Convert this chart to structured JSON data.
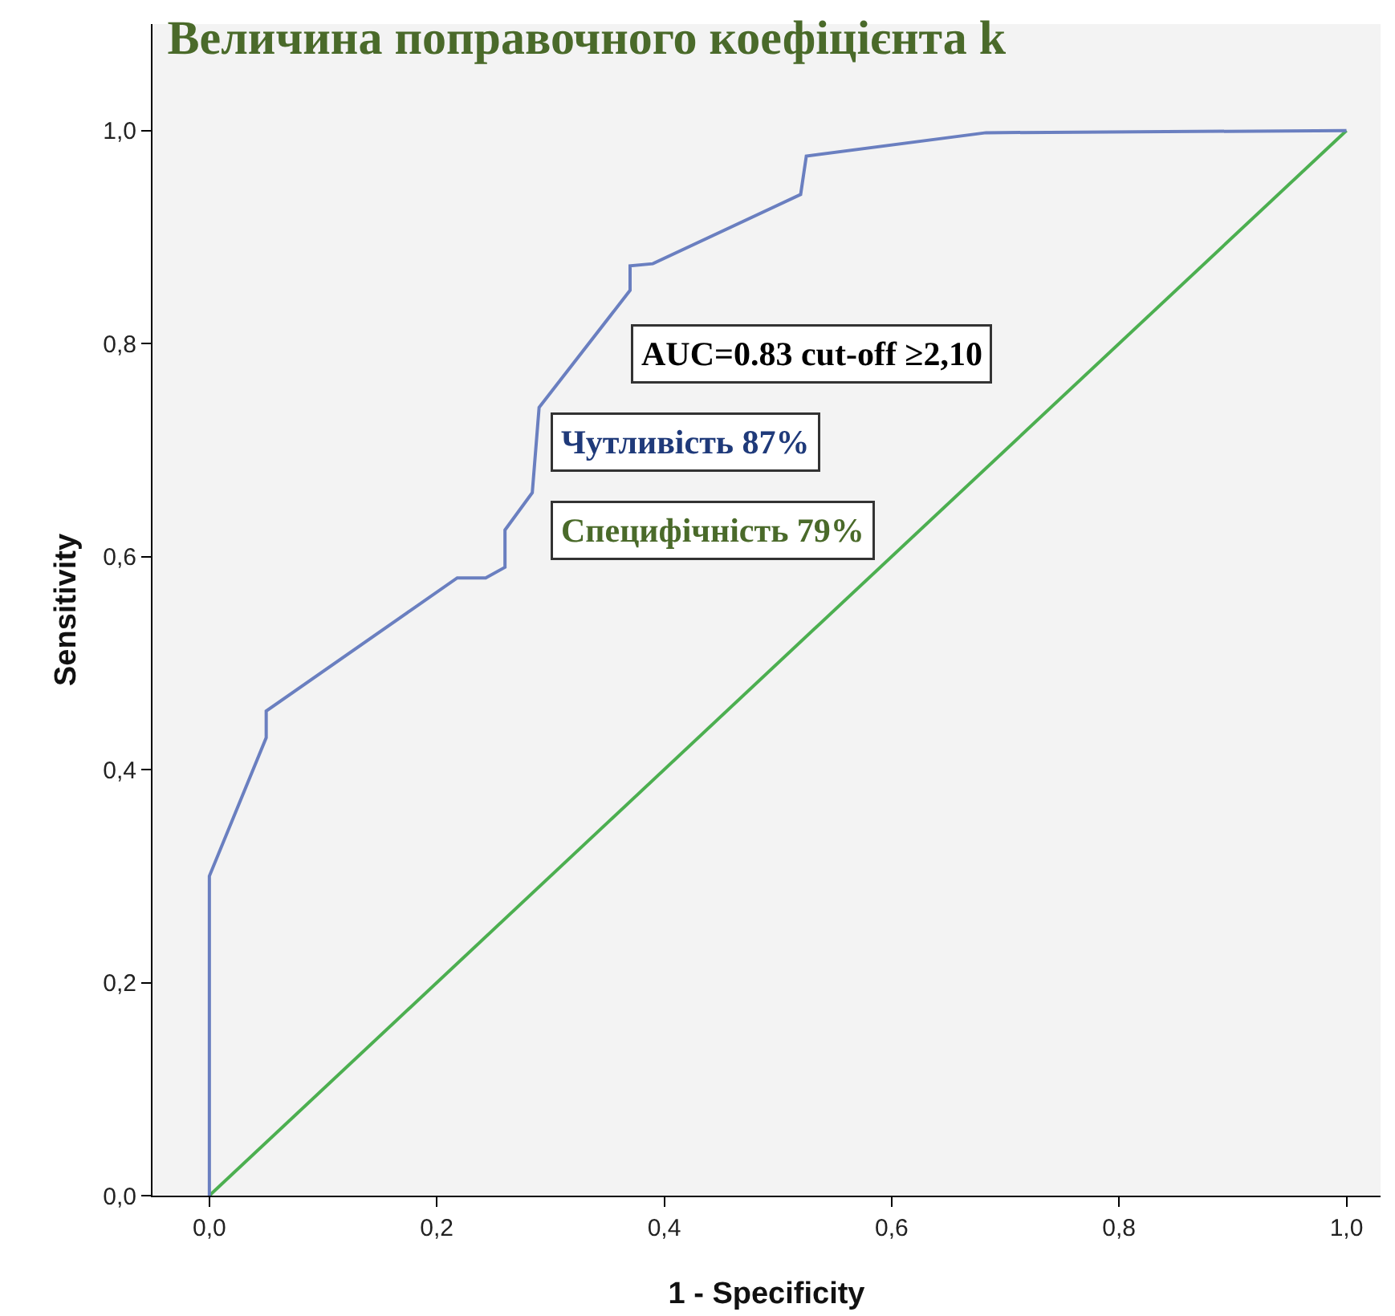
{
  "chart_data": {
    "type": "line",
    "title": "Величина поправочного коефіцієнта k",
    "xlabel": "1 - Specificity",
    "ylabel": "Sensitivity",
    "series": [
      {
        "type": "line",
        "color": "#4caf50",
        "x": [
          0,
          1
        ],
        "values": [
          0,
          1
        ]
      },
      {
        "type": "line",
        "color": "#6a7fc0",
        "x": [
          0,
          0,
          0.05,
          0.05,
          0.218,
          0.243,
          0.26,
          0.26,
          0.284,
          0.29,
          0.37,
          0.37,
          0.39,
          0.52,
          0.525,
          0.683,
          1
        ],
        "values": [
          0,
          0.3,
          0.43,
          0.455,
          0.58,
          0.58,
          0.59,
          0.625,
          0.66,
          0.74,
          0.85,
          0.873,
          0.875,
          0.94,
          0.976,
          0.998,
          1
        ]
      }
    ],
    "annotations": [
      "AUC=0.83 cut-off ≥2,10",
      "Чутливість 87%",
      "Специфічність 79%"
    ],
    "xlim": [
      -0.05,
      1.03
    ],
    "ylim": [
      0,
      1.1
    ],
    "xticks": [
      {
        "value": 0,
        "label": "0,0"
      },
      {
        "value": 0.2,
        "label": "0,2"
      },
      {
        "value": 0.4,
        "label": "0,4"
      },
      {
        "value": 0.6,
        "label": "0,6"
      },
      {
        "value": 0.8,
        "label": "0,8"
      },
      {
        "value": 1,
        "label": "1,0"
      }
    ],
    "yticks": [
      {
        "value": 0,
        "label": "0,0"
      },
      {
        "value": 0.2,
        "label": "0,2"
      },
      {
        "value": 0.4,
        "label": "0,4"
      },
      {
        "value": 0.6,
        "label": "0,6"
      },
      {
        "value": 0.8,
        "label": "0,8"
      },
      {
        "value": 1,
        "label": "1,0"
      }
    ],
    "grid": false
  }
}
